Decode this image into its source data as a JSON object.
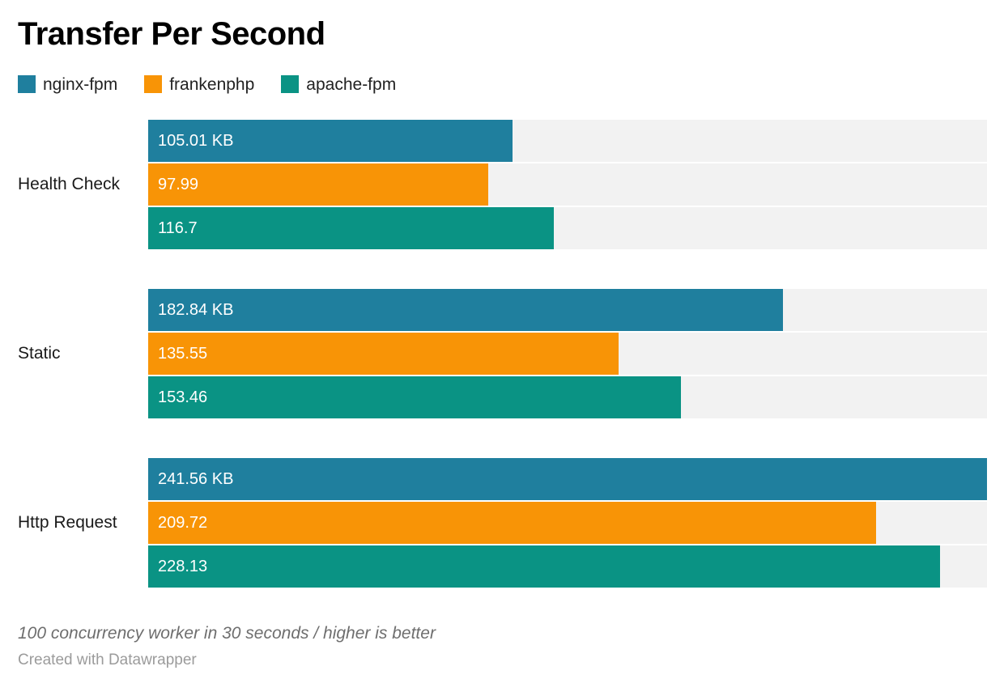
{
  "header": {
    "title": "Transfer Per Second"
  },
  "chart_data": {
    "type": "bar",
    "orientation": "horizontal",
    "title": "Transfer Per Second",
    "categories": [
      "Health Check",
      "Static",
      "Http Request"
    ],
    "series": [
      {
        "name": "nginx-fpm",
        "color": "#1f7f9e",
        "values": [
          105.01,
          182.84,
          241.56
        ],
        "labels": [
          "105.01 KB",
          "182.84 KB",
          "241.56 KB"
        ]
      },
      {
        "name": "frankenphp",
        "color": "#f89406",
        "values": [
          97.99,
          135.55,
          209.72
        ],
        "labels": [
          "97.99",
          "135.55",
          "209.72"
        ]
      },
      {
        "name": "apache-fpm",
        "color": "#0a9384",
        "values": [
          116.7,
          153.46,
          228.13
        ],
        "labels": [
          "116.7",
          "153.46",
          "228.13"
        ]
      }
    ],
    "unit": "KB",
    "xlim": [
      0,
      241.56
    ],
    "track_color": "#f2f2f2",
    "grid": false,
    "legend_position": "top",
    "value_labels": "inside-start"
  },
  "footer": {
    "note": "100 concurrency worker in 30 seconds / higher is better",
    "credit": "Created with Datawrapper"
  }
}
